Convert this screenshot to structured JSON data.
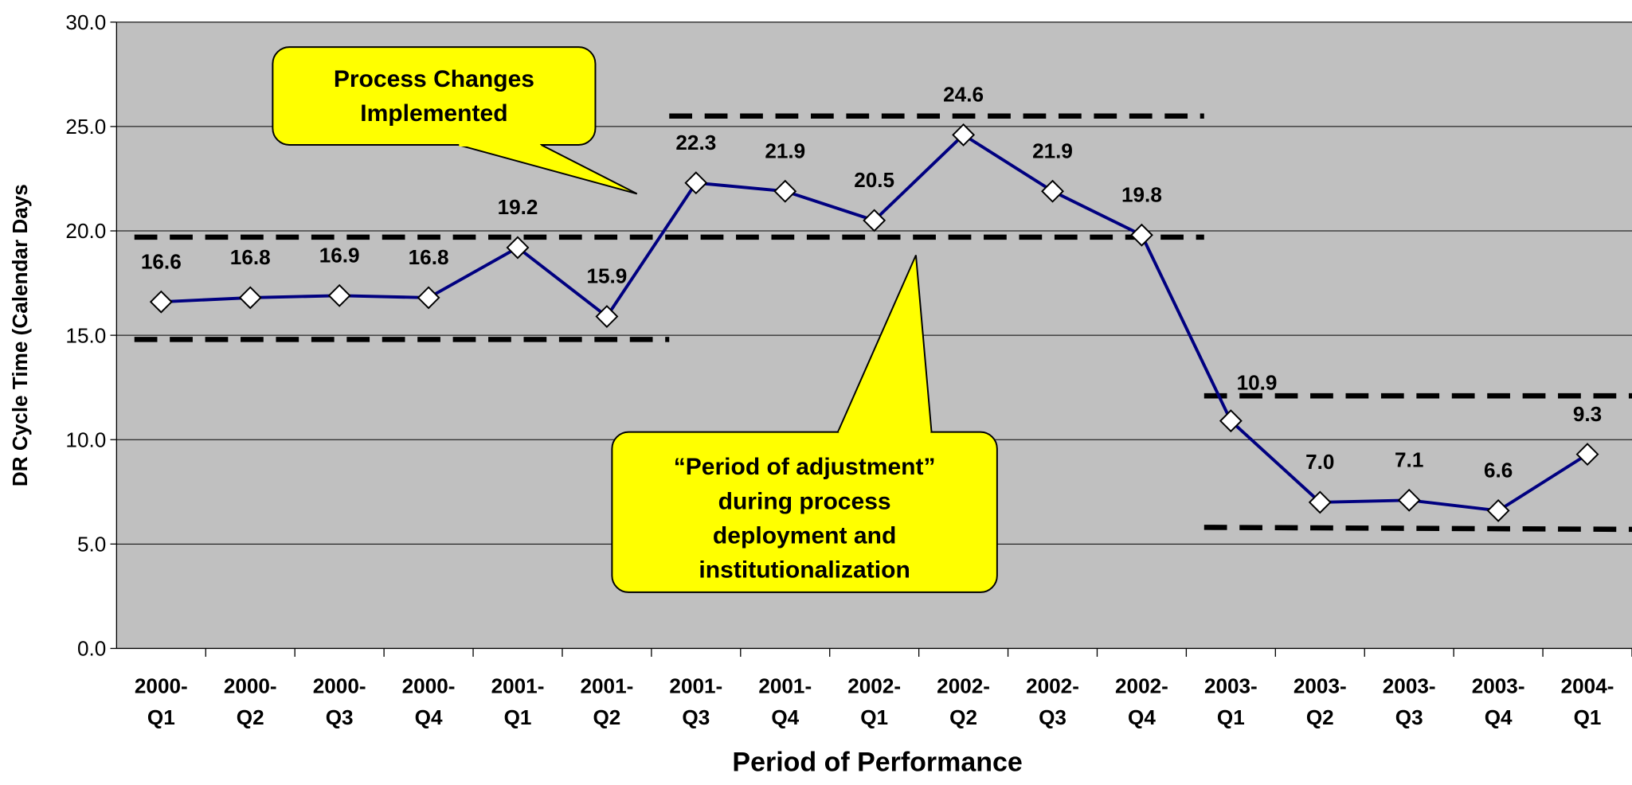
{
  "chart_data": {
    "type": "line",
    "x_label": "Period of Performance",
    "y_label": "DR Cycle Time (Calendar Days",
    "categories": [
      "2000-Q1",
      "2000-Q2",
      "2000-Q3",
      "2000-Q4",
      "2001-Q1",
      "2001-Q2",
      "2001-Q3",
      "2001-Q4",
      "2002-Q1",
      "2002-Q2",
      "2002-Q3",
      "2002-Q4",
      "2003-Q1",
      "2003-Q2",
      "2003-Q3",
      "2003-Q4",
      "2004-Q1"
    ],
    "series": [
      {
        "color": "#000080",
        "values": [
          16.6,
          16.8,
          16.9,
          16.8,
          19.2,
          15.9,
          22.3,
          21.9,
          20.5,
          24.6,
          21.9,
          19.8,
          10.9,
          7.0,
          7.1,
          6.6,
          9.3
        ],
        "value_labels": [
          "16.6",
          "16.8",
          "16.9",
          "16.8",
          "19.2",
          "15.9",
          "22.3",
          "21.9",
          "20.5",
          "24.6",
          "21.9",
          "19.8",
          "10.9",
          "7.0",
          "7.1",
          "6.6",
          "9.3"
        ]
      }
    ],
    "ylim": [
      0,
      30
    ],
    "yticks": [
      {
        "value": 0,
        "label": "0.0"
      },
      {
        "value": 5,
        "label": "5.0"
      },
      {
        "value": 10,
        "label": "10.0"
      },
      {
        "value": 15,
        "label": "15.0"
      },
      {
        "value": 20,
        "label": "20.0"
      },
      {
        "value": 25,
        "label": "25.0"
      },
      {
        "value": 30,
        "label": "30.0"
      }
    ],
    "grid": true,
    "reference_lines": [
      {
        "y": [
          14.8,
          14.8
        ],
        "x": [
          -0.3,
          5.7
        ]
      },
      {
        "y": [
          19.7,
          19.7
        ],
        "x": [
          -0.3,
          11.7
        ]
      },
      {
        "y": [
          25.5,
          25.5
        ],
        "x": [
          5.7,
          11.7
        ]
      },
      {
        "y": [
          12.1,
          12.1
        ],
        "x": [
          11.7,
          16.7
        ]
      },
      {
        "y": [
          5.8,
          5.7
        ],
        "x": [
          11.7,
          16.7
        ]
      }
    ],
    "annotations": [
      {
        "lines": [
          "Process Changes",
          "Implemented"
        ]
      },
      {
        "lines": [
          "“Period of adjustment”",
          "during process",
          "deployment and",
          "institutionalization"
        ]
      }
    ]
  }
}
